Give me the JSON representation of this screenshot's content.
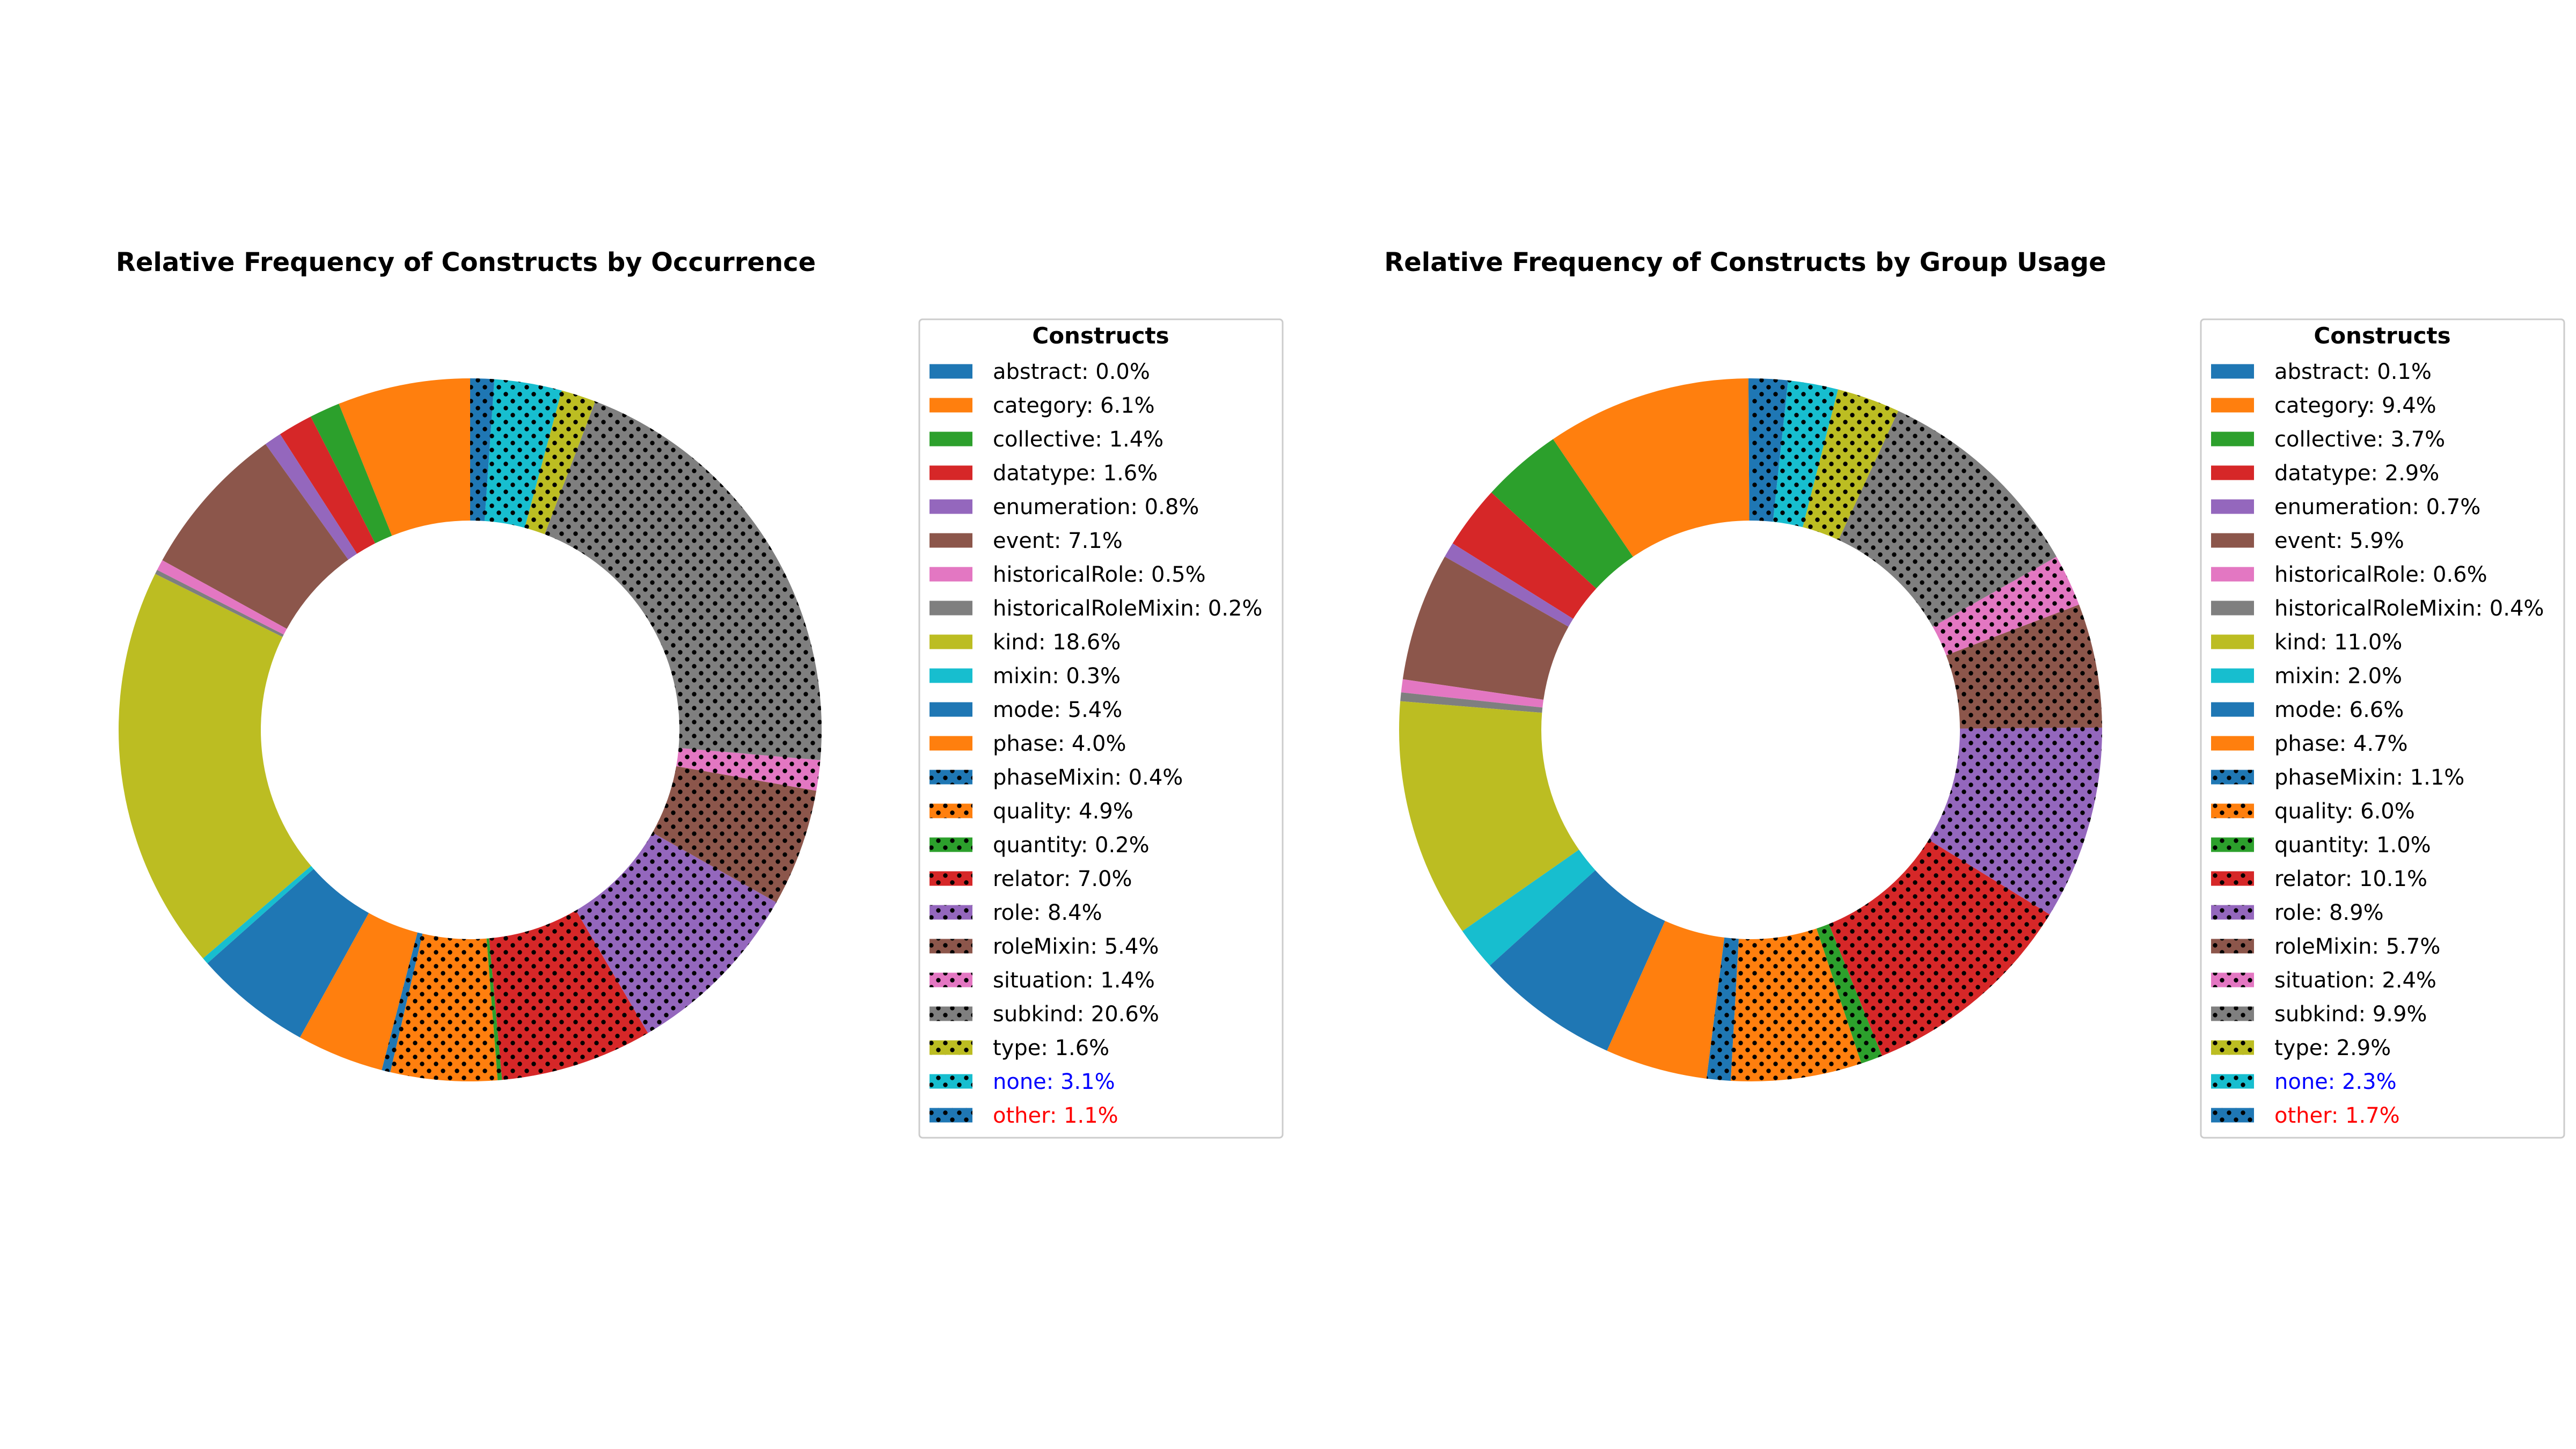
{
  "colors": {
    "tab_blue": "#1f77b4",
    "tab_orange": "#ff7f0e",
    "tab_green": "#2ca02c",
    "tab_red": "#d62728",
    "tab_purple": "#9467bd",
    "tab_brown": "#8c564b",
    "tab_pink": "#e377c2",
    "tab_gray": "#7f7f7f",
    "tab_olive": "#bcbd22",
    "tab_cyan": "#17becf",
    "none_label": "#0000ff",
    "other_label": "#ff0000"
  },
  "chart_data": [
    {
      "type": "pie",
      "variant": "donut",
      "title": "Relative Frequency of Constructs by Occurrence",
      "legend_title": "Constructs",
      "legend_position": "right",
      "start_angle_deg": 90,
      "direction": "counterclockwise",
      "hatch": "dots",
      "slices": [
        {
          "label": "abstract: 0.0%",
          "name": "abstract",
          "value": 0.0,
          "color": "#1f77b4",
          "hatched": false
        },
        {
          "label": "category: 6.1%",
          "name": "category",
          "value": 6.1,
          "color": "#ff7f0e",
          "hatched": false
        },
        {
          "label": "collective: 1.4%",
          "name": "collective",
          "value": 1.4,
          "color": "#2ca02c",
          "hatched": false
        },
        {
          "label": "datatype: 1.6%",
          "name": "datatype",
          "value": 1.6,
          "color": "#d62728",
          "hatched": false
        },
        {
          "label": "enumeration: 0.8%",
          "name": "enumeration",
          "value": 0.8,
          "color": "#9467bd",
          "hatched": false
        },
        {
          "label": "event: 7.1%",
          "name": "event",
          "value": 7.1,
          "color": "#8c564b",
          "hatched": false
        },
        {
          "label": "historicalRole: 0.5%",
          "name": "historicalRole",
          "value": 0.5,
          "color": "#e377c2",
          "hatched": false
        },
        {
          "label": "historicalRoleMixin: 0.2%",
          "name": "historicalRoleMixin",
          "value": 0.2,
          "color": "#7f7f7f",
          "hatched": false
        },
        {
          "label": "kind: 18.6%",
          "name": "kind",
          "value": 18.6,
          "color": "#bcbd22",
          "hatched": false
        },
        {
          "label": "mixin: 0.3%",
          "name": "mixin",
          "value": 0.3,
          "color": "#17becf",
          "hatched": false
        },
        {
          "label": "mode: 5.4%",
          "name": "mode",
          "value": 5.4,
          "color": "#1f77b4",
          "hatched": false
        },
        {
          "label": "phase: 4.0%",
          "name": "phase",
          "value": 4.0,
          "color": "#ff7f0e",
          "hatched": false
        },
        {
          "label": "phaseMixin: 0.4%",
          "name": "phaseMixin",
          "value": 0.4,
          "color": "#1f77b4",
          "hatched": true
        },
        {
          "label": "quality: 4.9%",
          "name": "quality",
          "value": 4.9,
          "color": "#ff7f0e",
          "hatched": true
        },
        {
          "label": "quantity: 0.2%",
          "name": "quantity",
          "value": 0.2,
          "color": "#2ca02c",
          "hatched": true
        },
        {
          "label": "relator: 7.0%",
          "name": "relator",
          "value": 7.0,
          "color": "#d62728",
          "hatched": true
        },
        {
          "label": "role: 8.4%",
          "name": "role",
          "value": 8.4,
          "color": "#9467bd",
          "hatched": true
        },
        {
          "label": "roleMixin: 5.4%",
          "name": "roleMixin",
          "value": 5.4,
          "color": "#8c564b",
          "hatched": true
        },
        {
          "label": "situation: 1.4%",
          "name": "situation",
          "value": 1.4,
          "color": "#e377c2",
          "hatched": true
        },
        {
          "label": "subkind: 20.6%",
          "name": "subkind",
          "value": 20.6,
          "color": "#7f7f7f",
          "hatched": true
        },
        {
          "label": "type: 1.6%",
          "name": "type",
          "value": 1.6,
          "color": "#bcbd22",
          "hatched": true
        },
        {
          "label": "none: 3.1%",
          "name": "none",
          "value": 3.1,
          "color": "#17becf",
          "hatched": true,
          "label_color": "#0000ff"
        },
        {
          "label": "other: 1.1%",
          "name": "other",
          "value": 1.1,
          "color": "#1f77b4",
          "hatched": true,
          "label_color": "#ff0000"
        }
      ]
    },
    {
      "type": "pie",
      "variant": "donut",
      "title": "Relative Frequency of Constructs by Group Usage",
      "legend_title": "Constructs",
      "legend_position": "right",
      "start_angle_deg": 90,
      "direction": "counterclockwise",
      "hatch": "dots",
      "slices": [
        {
          "label": "abstract: 0.1%",
          "name": "abstract",
          "value": 0.1,
          "color": "#1f77b4",
          "hatched": false
        },
        {
          "label": "category: 9.4%",
          "name": "category",
          "value": 9.4,
          "color": "#ff7f0e",
          "hatched": false
        },
        {
          "label": "collective: 3.7%",
          "name": "collective",
          "value": 3.7,
          "color": "#2ca02c",
          "hatched": false
        },
        {
          "label": "datatype: 2.9%",
          "name": "datatype",
          "value": 2.9,
          "color": "#d62728",
          "hatched": false
        },
        {
          "label": "enumeration: 0.7%",
          "name": "enumeration",
          "value": 0.7,
          "color": "#9467bd",
          "hatched": false
        },
        {
          "label": "event: 5.9%",
          "name": "event",
          "value": 5.9,
          "color": "#8c564b",
          "hatched": false
        },
        {
          "label": "historicalRole: 0.6%",
          "name": "historicalRole",
          "value": 0.6,
          "color": "#e377c2",
          "hatched": false
        },
        {
          "label": "historicalRoleMixin: 0.4%",
          "name": "historicalRoleMixin",
          "value": 0.4,
          "color": "#7f7f7f",
          "hatched": false
        },
        {
          "label": "kind: 11.0%",
          "name": "kind",
          "value": 11.0,
          "color": "#bcbd22",
          "hatched": false
        },
        {
          "label": "mixin: 2.0%",
          "name": "mixin",
          "value": 2.0,
          "color": "#17becf",
          "hatched": false
        },
        {
          "label": "mode: 6.6%",
          "name": "mode",
          "value": 6.6,
          "color": "#1f77b4",
          "hatched": false
        },
        {
          "label": "phase: 4.7%",
          "name": "phase",
          "value": 4.7,
          "color": "#ff7f0e",
          "hatched": false
        },
        {
          "label": "phaseMixin: 1.1%",
          "name": "phaseMixin",
          "value": 1.1,
          "color": "#1f77b4",
          "hatched": true
        },
        {
          "label": "quality: 6.0%",
          "name": "quality",
          "value": 6.0,
          "color": "#ff7f0e",
          "hatched": true
        },
        {
          "label": "quantity: 1.0%",
          "name": "quantity",
          "value": 1.0,
          "color": "#2ca02c",
          "hatched": true
        },
        {
          "label": "relator: 10.1%",
          "name": "relator",
          "value": 10.1,
          "color": "#d62728",
          "hatched": true
        },
        {
          "label": "role: 8.9%",
          "name": "role",
          "value": 8.9,
          "color": "#9467bd",
          "hatched": true
        },
        {
          "label": "roleMixin: 5.7%",
          "name": "roleMixin",
          "value": 5.7,
          "color": "#8c564b",
          "hatched": true
        },
        {
          "label": "situation: 2.4%",
          "name": "situation",
          "value": 2.4,
          "color": "#e377c2",
          "hatched": true
        },
        {
          "label": "subkind: 9.9%",
          "name": "subkind",
          "value": 9.9,
          "color": "#7f7f7f",
          "hatched": true
        },
        {
          "label": "type: 2.9%",
          "name": "type",
          "value": 2.9,
          "color": "#bcbd22",
          "hatched": true
        },
        {
          "label": "none: 2.3%",
          "name": "none",
          "value": 2.3,
          "color": "#17becf",
          "hatched": true,
          "label_color": "#0000ff"
        },
        {
          "label": "other: 1.7%",
          "name": "other",
          "value": 1.7,
          "color": "#1f77b4",
          "hatched": true,
          "label_color": "#ff0000"
        }
      ]
    }
  ]
}
